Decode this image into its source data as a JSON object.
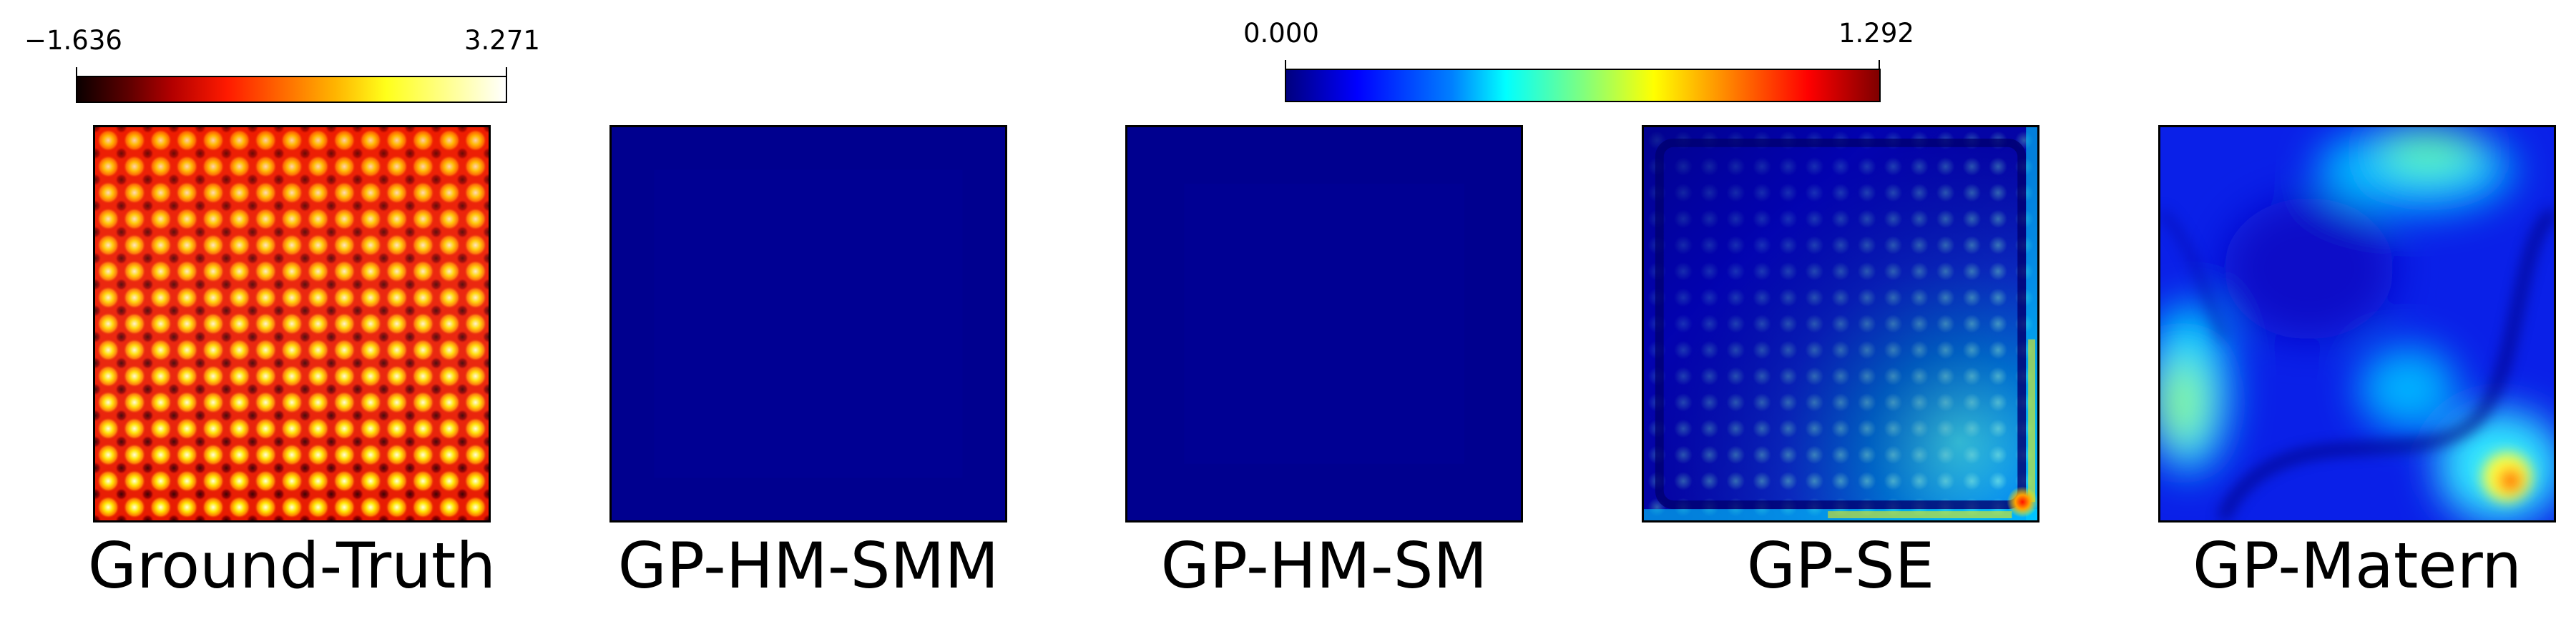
{
  "chart_data": [
    {
      "type": "heatmap",
      "colorbar": {
        "colormap": "hot",
        "min": -1.636,
        "max": 3.271,
        "min_label": "−1.636",
        "max_label": "3.271",
        "orientation": "horizontal",
        "placement": "top-left"
      },
      "panels": [
        {
          "title": "Ground-Truth",
          "pattern": "periodic grid of bright peaks (approx. 15 x 15)"
        }
      ]
    },
    {
      "type": "heatmap",
      "colorbar": {
        "colormap": "jet",
        "min": 0.0,
        "max": 1.292,
        "min_label": "0.000",
        "max_label": "1.292",
        "orientation": "horizontal",
        "placement": "top-center"
      },
      "panels": [
        {
          "title": "GP-HM-SMM",
          "pattern": "near-zero everywhere"
        },
        {
          "title": "GP-HM-SM",
          "pattern": "near-zero everywhere"
        },
        {
          "title": "GP-SE",
          "pattern": "periodic blobs increasing toward lower-right, high error along right and bottom edges"
        },
        {
          "title": "GP-Matern",
          "pattern": "smooth blobs, peaks at top-right, left-center and bottom-right"
        }
      ]
    }
  ],
  "colors": {
    "background": "#ffffff",
    "axes": "#000000"
  }
}
